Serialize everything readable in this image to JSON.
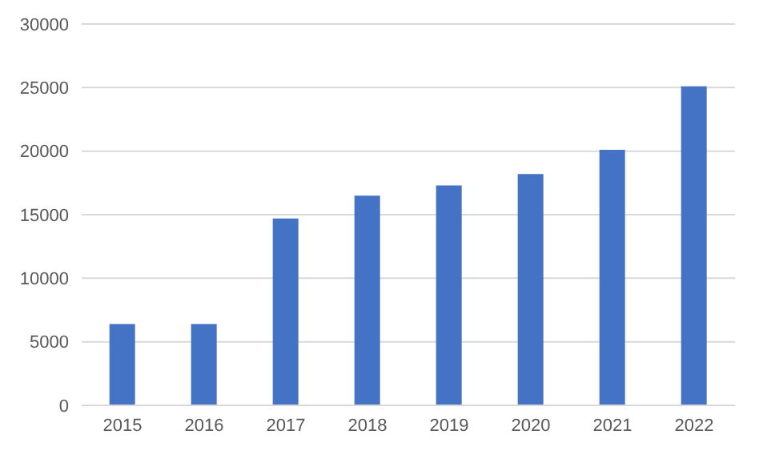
{
  "chart_data": {
    "type": "bar",
    "categories": [
      "2015",
      "2016",
      "2017",
      "2018",
      "2019",
      "2020",
      "2021",
      "2022"
    ],
    "values": [
      6400,
      6400,
      14700,
      16500,
      17300,
      18200,
      20100,
      25100
    ],
    "color": "#4472c4",
    "ylim": [
      0,
      30000
    ],
    "yticks": [
      0,
      5000,
      10000,
      15000,
      20000,
      25000,
      30000
    ],
    "grid": "y",
    "legend": false
  }
}
